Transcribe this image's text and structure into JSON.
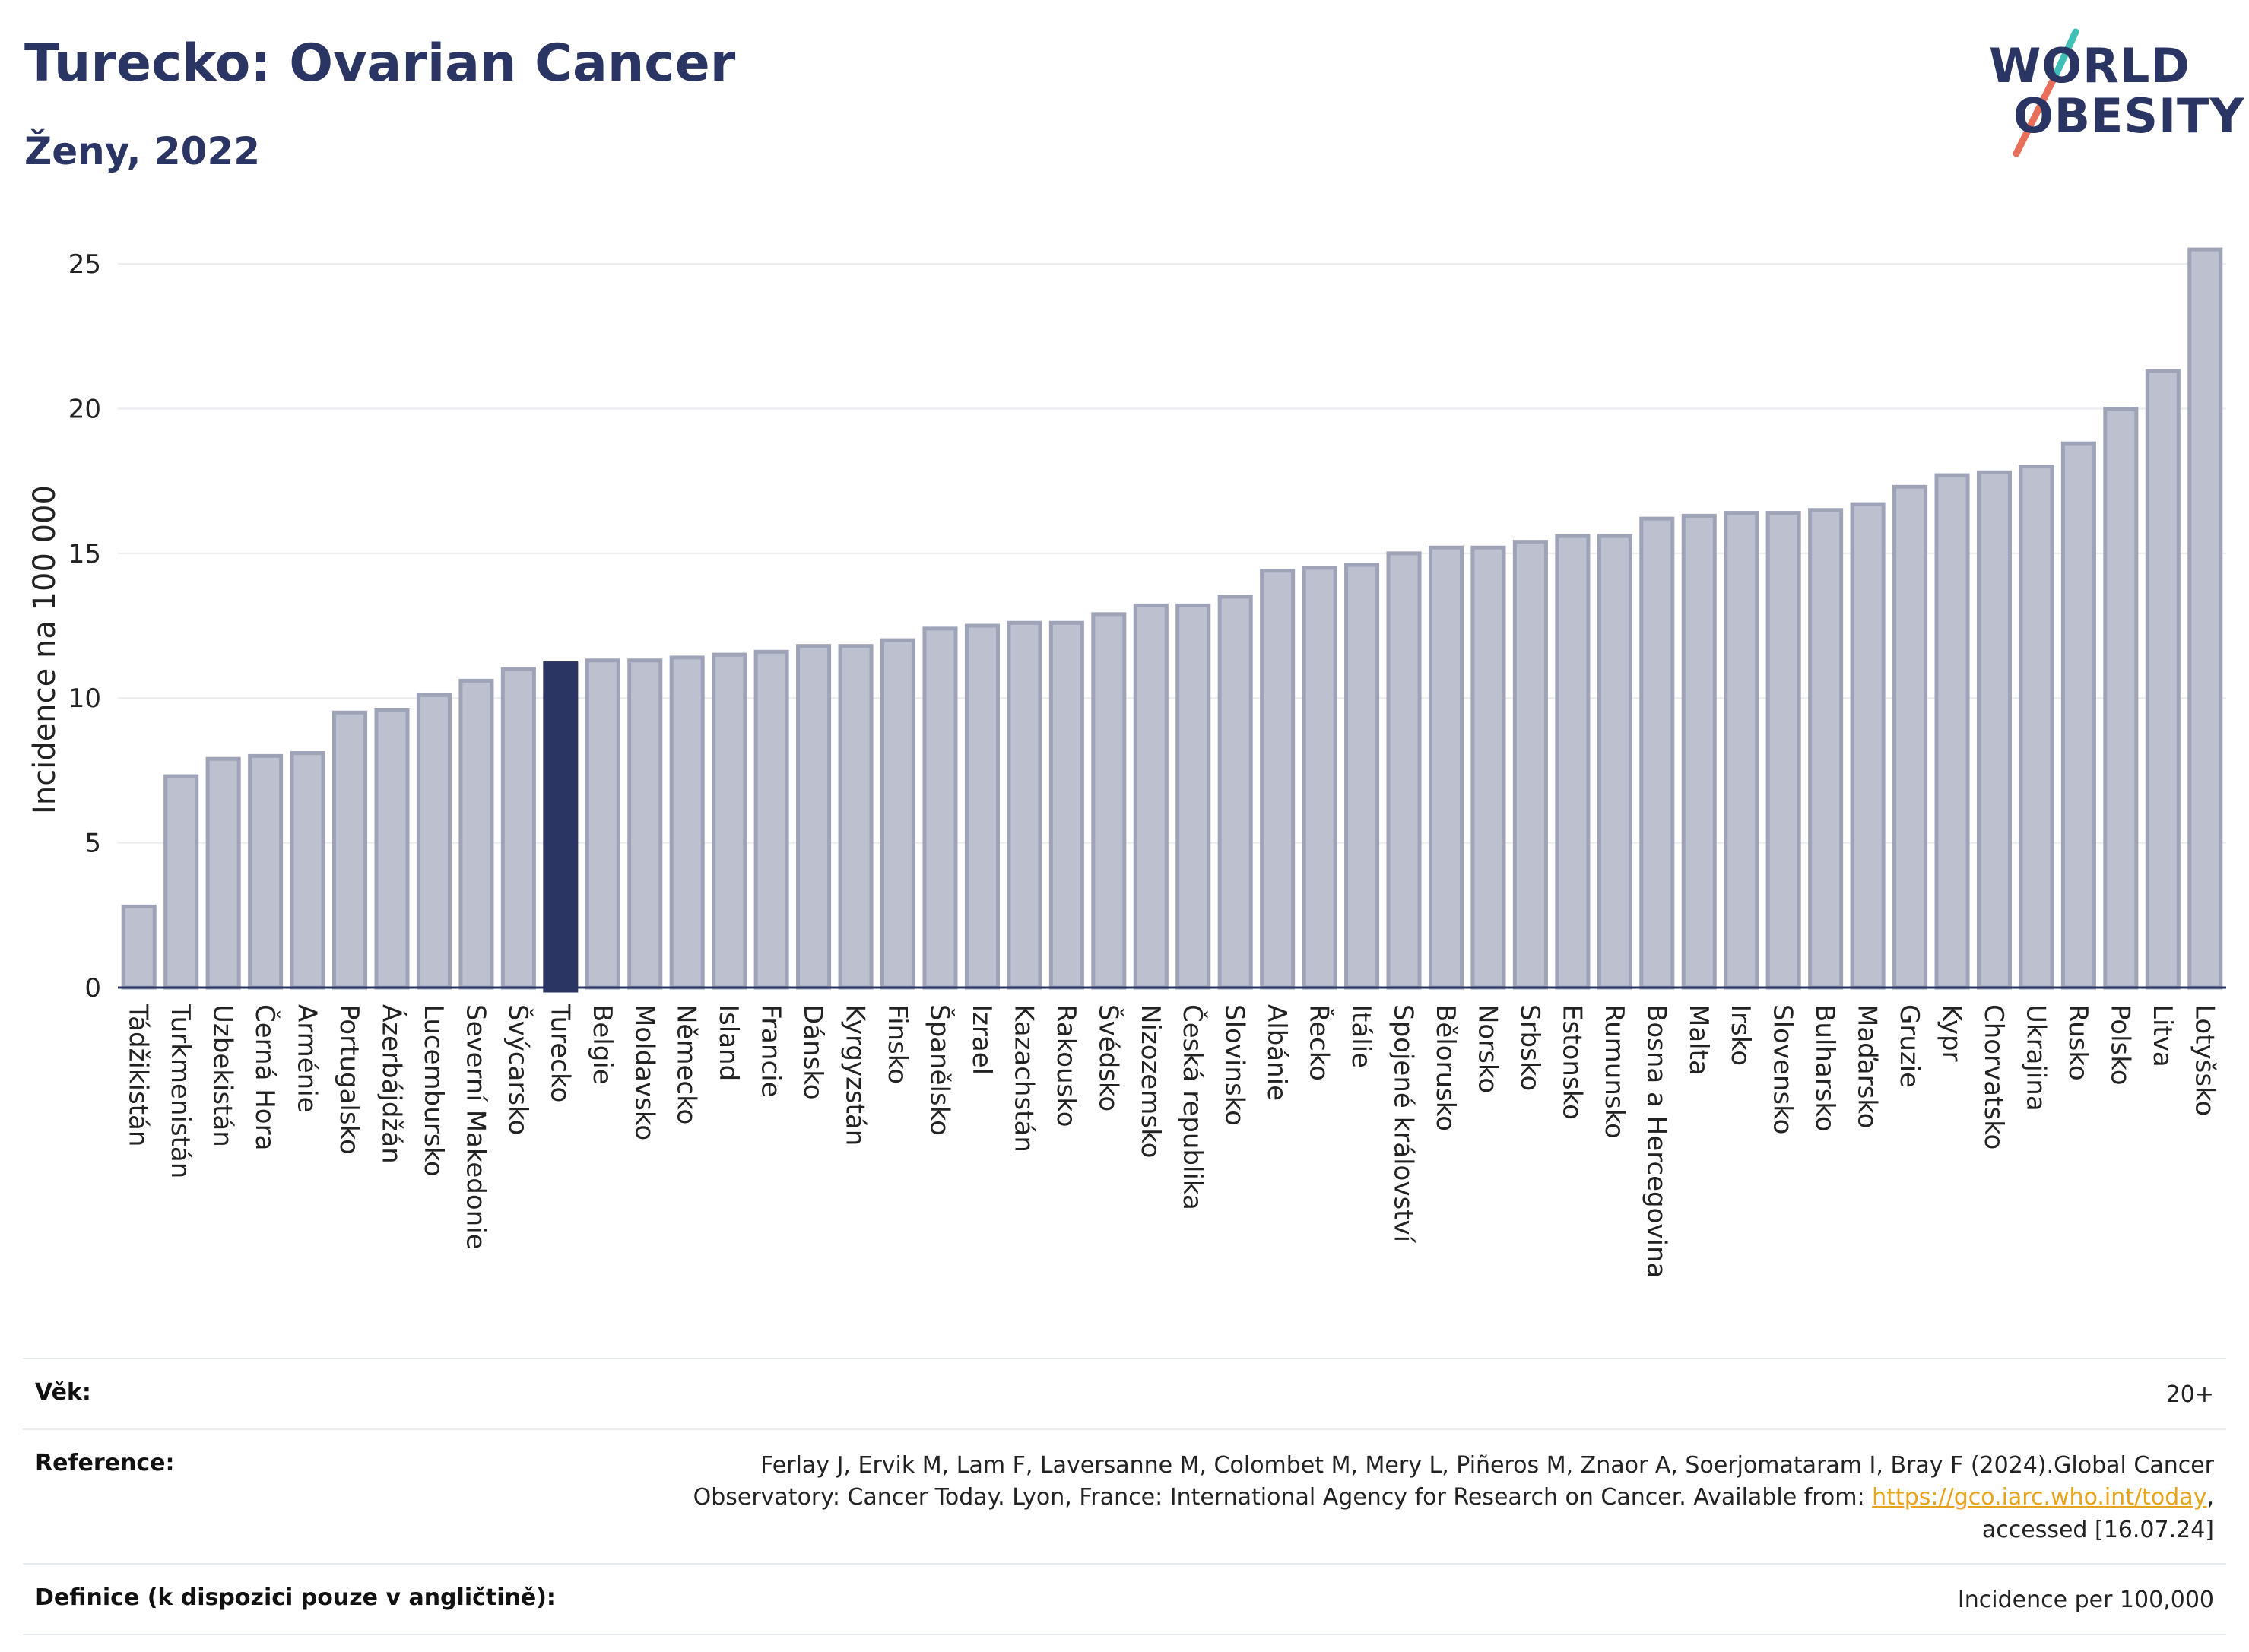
{
  "header": {
    "title": "Turecko: Ovarian Cancer",
    "subtitle": "Ženy, 2022"
  },
  "logo": {
    "line1": "WORLD",
    "line2": "OBESITY"
  },
  "chart_data": {
    "type": "bar",
    "ylabel": "Incidence na 100 000",
    "ylim": [
      0,
      26.5
    ],
    "yticks": [
      0,
      5,
      10,
      15,
      20,
      25
    ],
    "grid": true,
    "highlight": "Turecko",
    "colors": {
      "bar": "#bcc0cf",
      "bar_edge": "#9ea3b8",
      "highlight": "#2a3563"
    },
    "categories": [
      "Tádžikistán",
      "Turkmenistán",
      "Uzbekistán",
      "Černá Hora",
      "Arménie",
      "Portugalsko",
      "Ázerbájdžán",
      "Lucembursko",
      "Severní Makedonie",
      "Švýcarsko",
      "Turecko",
      "Belgie",
      "Moldavsko",
      "Německo",
      "Island",
      "Francie",
      "Dánsko",
      "Kyrgyzstán",
      "Finsko",
      "Španělsko",
      "Izrael",
      "Kazachstán",
      "Rakousko",
      "Švédsko",
      "Nizozemsko",
      "Česká republika",
      "Slovinsko",
      "Albánie",
      "Řecko",
      "Itálie",
      "Spojené království",
      "Bělorusko",
      "Norsko",
      "Srbsko",
      "Estonsko",
      "Rumunsko",
      "Bosna a Hercegovina",
      "Malta",
      "Irsko",
      "Slovensko",
      "Bulharsko",
      "Maďarsko",
      "Gruzie",
      "Kypr",
      "Chorvatsko",
      "Ukrajina",
      "Rusko",
      "Polsko",
      "Litva",
      "Lotyšsko"
    ],
    "values": [
      2.8,
      7.3,
      7.9,
      8.0,
      8.1,
      9.5,
      9.6,
      10.1,
      10.6,
      11.0,
      11.2,
      11.3,
      11.3,
      11.4,
      11.5,
      11.6,
      11.8,
      11.8,
      12.0,
      12.4,
      12.5,
      12.6,
      12.6,
      12.9,
      13.2,
      13.2,
      13.5,
      14.4,
      14.5,
      14.6,
      15.0,
      15.2,
      15.2,
      15.4,
      15.6,
      15.6,
      16.2,
      16.3,
      16.4,
      16.4,
      16.5,
      16.7,
      17.3,
      17.7,
      17.8,
      18.0,
      18.8,
      20.0,
      21.3,
      25.5
    ]
  },
  "info": {
    "age_label": "Věk:",
    "age_value": "20+",
    "reference_label": "Reference:",
    "reference_text": "Ferlay J, Ervik M, Lam F, Laversanne M, Colombet M, Mery L, Piñeros M, Znaor A, Soerjomataram I, Bray F (2024).Global Cancer Observatory: Cancer Today. Lyon, France: International Agency for Research on Cancer. Available from: ",
    "reference_link": "https://gco.iarc.who.int/today",
    "reference_suffix": ", accessed [16.07.24]",
    "definition_label": "Definice (k dispozici pouze v angličtině):",
    "definition_value": "Incidence per 100,000"
  }
}
